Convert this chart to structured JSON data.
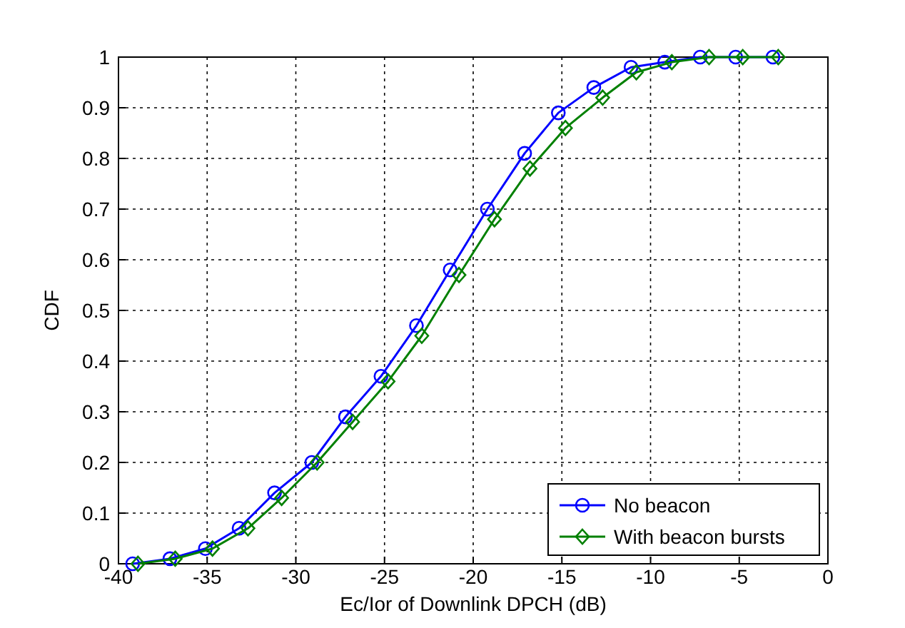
{
  "chart_data": {
    "type": "line",
    "xlabel": "Ec/Ior of Downlink DPCH (dB)",
    "ylabel": "CDF",
    "xlim": [
      -40,
      0
    ],
    "xticks": [
      -40,
      -35,
      -30,
      -25,
      -20,
      -15,
      -10,
      -5,
      0
    ],
    "ylim": [
      0,
      1
    ],
    "yticks": [
      0,
      0.1,
      0.2,
      0.3,
      0.4,
      0.5,
      0.6,
      0.7,
      0.8,
      0.9,
      1
    ],
    "grid": true,
    "legend": "bottom right",
    "line_style": "solid",
    "series": [
      {
        "name": "No beacon",
        "color": "#0000ff",
        "marker": "circle",
        "x": [
          -39.2,
          -37.1,
          -35.1,
          -33.2,
          -31.2,
          -29.1,
          -27.2,
          -25.2,
          -23.2,
          -21.3,
          -19.2,
          -17.1,
          -15.2,
          -13.2,
          -11.1,
          -9.2,
          -7.2,
          -5.2,
          -3.1
        ],
        "values": [
          0,
          0.01,
          0.03,
          0.07,
          0.14,
          0.2,
          0.29,
          0.37,
          0.47,
          0.58,
          0.7,
          0.81,
          0.89,
          0.94,
          0.98,
          0.99,
          1,
          1,
          1
        ]
      },
      {
        "name": "With beacon bursts",
        "color": "#008000",
        "marker": "diamond",
        "x": [
          -38.9,
          -36.8,
          -34.7,
          -32.7,
          -30.8,
          -28.8,
          -26.8,
          -24.8,
          -22.9,
          -20.8,
          -18.8,
          -16.8,
          -14.8,
          -12.7,
          -10.8,
          -8.8,
          -6.7,
          -4.8,
          -2.8
        ],
        "values": [
          0,
          0.01,
          0.03,
          0.07,
          0.13,
          0.2,
          0.28,
          0.36,
          0.45,
          0.57,
          0.68,
          0.78,
          0.86,
          0.92,
          0.97,
          0.99,
          1,
          1,
          1
        ]
      }
    ]
  }
}
